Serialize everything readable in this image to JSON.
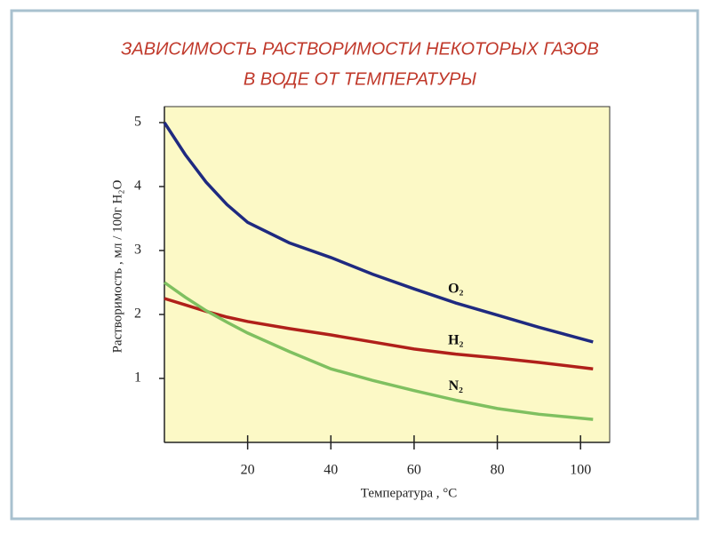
{
  "chart_data": {
    "type": "line",
    "title": "ЗАВИСИМОСТЬ  РАСТВОРИМОСТИ  НЕКОТОРЫХ  ГАЗОВ",
    "subtitle": "В  ВОДЕ  ОТ  ТЕМПЕРАТУРЫ",
    "x_label": "Температура , °С",
    "y_label": "Растворимость , мл / 100г H₂O",
    "x": [
      0,
      5,
      10,
      15,
      20,
      30,
      40,
      50,
      60,
      70,
      80,
      90,
      103
    ],
    "series": [
      {
        "name": "O₂",
        "color": "#1f2a80",
        "values": [
          5.0,
          4.5,
          4.07,
          3.72,
          3.44,
          3.12,
          2.89,
          2.63,
          2.4,
          2.18,
          1.99,
          1.8,
          1.57
        ]
      },
      {
        "name": "H₂",
        "color": "#b0201a",
        "values": [
          2.25,
          2.15,
          2.05,
          1.96,
          1.89,
          1.78,
          1.68,
          1.57,
          1.46,
          1.38,
          1.32,
          1.25,
          1.15
        ]
      },
      {
        "name": "N₂",
        "color": "#7fc060",
        "values": [
          2.5,
          2.27,
          2.06,
          1.88,
          1.71,
          1.42,
          1.15,
          0.97,
          0.81,
          0.66,
          0.53,
          0.44,
          0.36
        ]
      }
    ],
    "xlim": [
      0,
      107
    ],
    "ylim": [
      0,
      5.25
    ],
    "xticks": [
      20,
      40,
      60,
      80,
      100
    ],
    "yticks": [
      1,
      2,
      3,
      4,
      5
    ],
    "plot_background": "#fcf9c6"
  }
}
